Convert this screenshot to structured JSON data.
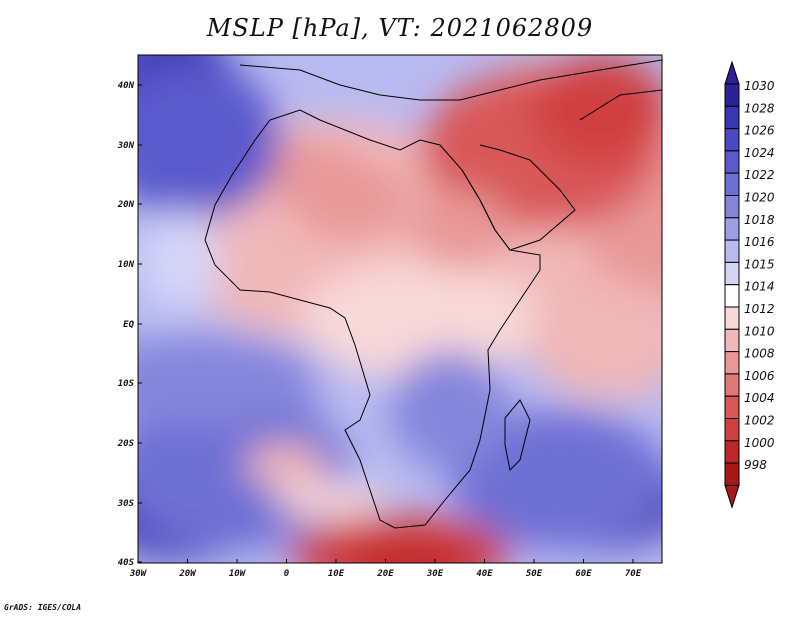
{
  "title": "MSLP [hPa], VT: 2021062809",
  "footer": "GrADS: IGES/COLA",
  "map": {
    "lon_labels": [
      "30W",
      "20W",
      "10W",
      "0",
      "10E",
      "20E",
      "30E",
      "40E",
      "50E",
      "60E",
      "70E"
    ],
    "lat_labels": [
      "40N",
      "30N",
      "20N",
      "10N",
      "EQ",
      "10S",
      "20S",
      "30S",
      "40S"
    ],
    "lon_range": [
      -30,
      75
    ],
    "lat_range": [
      -40,
      45
    ]
  },
  "legend": {
    "levels": [
      "1030",
      "1028",
      "1026",
      "1024",
      "1022",
      "1020",
      "1018",
      "1016",
      "1015",
      "1014",
      "1012",
      "1010",
      "1008",
      "1006",
      "1004",
      "1002",
      "1000",
      "998"
    ],
    "colors": [
      "#2a2296",
      "#3a35b2",
      "#4a48c4",
      "#5a5acc",
      "#6e70d4",
      "#8486dc",
      "#9c9ee6",
      "#b8baf0",
      "#d4d6f8",
      "#ffffff",
      "#f8d8d8",
      "#f0b8b8",
      "#e89898",
      "#e07878",
      "#d85858",
      "#d04040",
      "#c02828",
      "#a81818"
    ]
  }
}
